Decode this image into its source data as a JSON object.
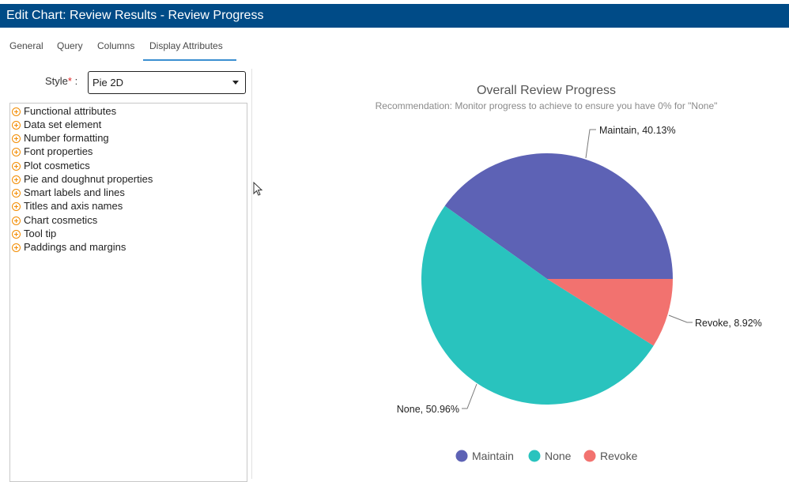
{
  "window": {
    "title": "Edit Chart: Review Results - Review Progress"
  },
  "tabs": [
    {
      "label": "General"
    },
    {
      "label": "Query"
    },
    {
      "label": "Columns"
    },
    {
      "label": "Display Attributes"
    }
  ],
  "style_field": {
    "label": "Style",
    "required_mark": "*",
    "colon": ":",
    "value": "Pie 2D"
  },
  "tree": {
    "items": [
      "Functional attributes",
      "Data set element",
      "Number formatting",
      "Font properties",
      "Plot cosmetics",
      "Pie and doughnut properties",
      "Smart labels and lines",
      "Titles and axis names",
      "Chart cosmetics",
      "Tool tip",
      "Paddings and margins"
    ]
  },
  "chart_data": {
    "type": "pie",
    "title": "Overall Review Progress",
    "subtitle": "Recommendation: Monitor progress to achieve to ensure you have 0% for \"None\"",
    "categories": [
      "Maintain",
      "None",
      "Revoke"
    ],
    "values": [
      40.13,
      50.96,
      8.92
    ],
    "data_labels": [
      "Maintain, 40.13%",
      "None, 50.96%",
      "Revoke, 8.92%"
    ],
    "colors": [
      "#5d62b5",
      "#29c3be",
      "#f2726f"
    ],
    "legend": {
      "placement": "bottom",
      "entries": [
        "Maintain",
        "None",
        "Revoke"
      ]
    }
  }
}
